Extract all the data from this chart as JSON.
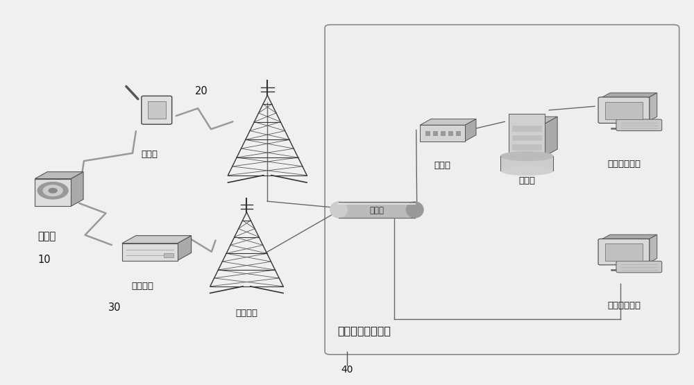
{
  "bg_color": "#e8e8e8",
  "figure_bg": "#e8e8e8",
  "labels": {
    "collector": "采集器",
    "collector_num": "10",
    "handheld": "手持机",
    "handheld_num": "20",
    "vehicle_relay": "车载中继",
    "vehicle_relay_num": "30",
    "base_station": "通信基站",
    "internet": "互联网",
    "lan": "局域网",
    "server": "服务器",
    "intranet_terminal": "网内浏览终端",
    "extranet_terminal": "网外浏览终端",
    "ground_equipment": "地面数据处理设备",
    "ground_num": "40"
  },
  "line_color": "#666666",
  "text_color": "#111111",
  "label_fontsize": 9.5,
  "number_fontsize": 10
}
